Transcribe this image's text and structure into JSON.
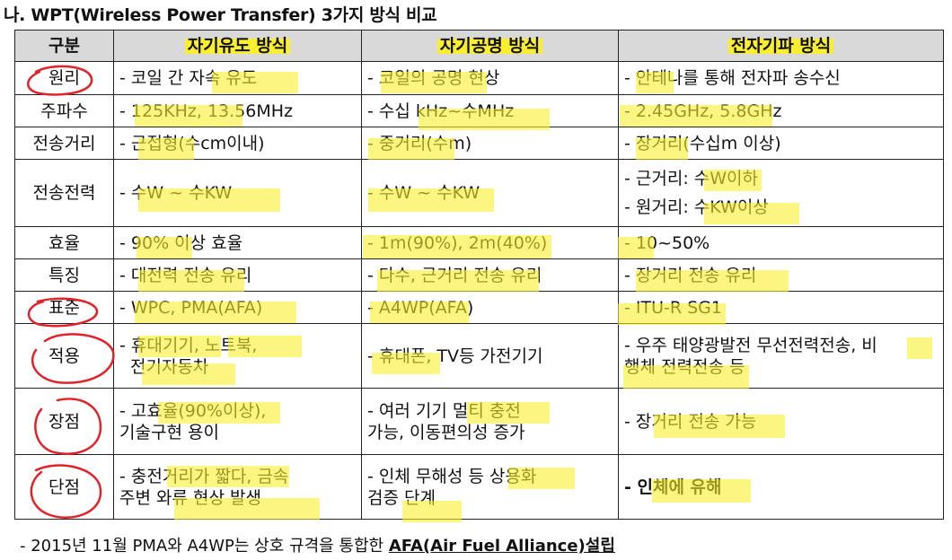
{
  "title": "나. WPT(Wireless Power Transfer) 3가지 방식 비교",
  "headers": [
    "구분",
    "자기유도 방식",
    "자기공명 방식",
    "전자기파 방식"
  ],
  "rows": [
    {
      "category": "원리",
      "cells": [
        [
          "- 코일 간 자속 유도"
        ],
        [
          "- 코일의 공명 현상"
        ],
        [
          "- 안테나를 통해 전자파 송수신"
        ]
      ]
    },
    {
      "category": "주파수",
      "cells": [
        [
          "- 125KHz, 13.56MHz"
        ],
        [
          "- 수십 kHz~수MHz"
        ],
        [
          "- 2.45GHz, 5.8GHz"
        ]
      ]
    },
    {
      "category": "전송거리",
      "cells": [
        [
          "- 근접형(수cm이내)"
        ],
        [
          "- 중거리(수m)"
        ],
        [
          "- 장거리(수십m 이상)"
        ]
      ]
    },
    {
      "category": "전송전력",
      "cells": [
        [
          "- 수W ~ 수KW"
        ],
        [
          "- 수W ~ 수KW"
        ],
        [
          "- 근거리: 수W이하",
          "- 원거리: 수KW이상"
        ]
      ]
    },
    {
      "category": "효율",
      "cells": [
        [
          "- 90% 이상 효율"
        ],
        [
          "- 1m(90%), 2m(40%)"
        ],
        [
          "- 10~50%"
        ]
      ]
    },
    {
      "category": "특징",
      "cells": [
        [
          "- 대전력 전송 유리"
        ],
        [
          "- 다수, 근거리 전송 유리"
        ],
        [
          "- 장거리 전송 유리"
        ]
      ]
    },
    {
      "category": "표준",
      "cells": [
        [
          "- WPC, PMA(AFA)"
        ],
        [
          "- A4WP(AFA)"
        ],
        [
          "- ITU-R SG1"
        ]
      ]
    },
    {
      "category": "적용",
      "cells": [
        [
          "- 휴대기기, 노트북,",
          "전기자동차"
        ],
        [
          "- 휴대폰, TV등 가전기기"
        ],
        [
          "- 우주 태양광발전 무선전력전송, 비",
          "행체 전력전송 등"
        ]
      ]
    },
    {
      "category": "장점",
      "cells": [
        [
          "- 고효율(90%이상),",
          "기술구현 용이"
        ],
        [
          "- 여러 기기 멀티 충전",
          "가능, 이동편의성 증가"
        ],
        [
          "- 장거리 전송 가능"
        ]
      ]
    },
    {
      "category": "단점",
      "cells": [
        [
          "- 충전거리가 짧다, 금속",
          "주변 와류 현상 발생"
        ],
        [
          "- 인체 무해성 등 상용화",
          "검증 단계"
        ],
        [
          "- 인체에 유해"
        ]
      ]
    }
  ],
  "footer": {
    "prefix": "- 2015년 11월 PMA와 A4WP는 상호 규격을 통합한 ",
    "afa": "AFA(Air Fuel Alliance)설립"
  },
  "highlight_color": "#f9ee2f",
  "annotation_color": "#e0232a"
}
